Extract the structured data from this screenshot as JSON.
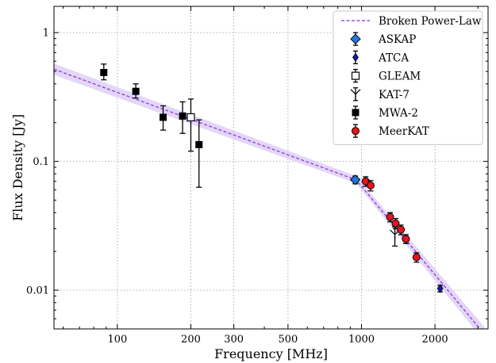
{
  "chart_data": {
    "type": "scatter",
    "xlabel": "Frequency [MHz]",
    "ylabel": "Flux Density [Jy]",
    "xscale": "log",
    "yscale": "log",
    "xlim": [
      55,
      3300
    ],
    "ylim": [
      0.005,
      1.6
    ],
    "x_ticks": [
      100,
      200,
      300,
      500,
      1000,
      2000
    ],
    "x_tick_labels": [
      "100",
      "200",
      "300",
      "500",
      "1000",
      "2000"
    ],
    "y_ticks": [
      0.01,
      0.1,
      1
    ],
    "y_tick_labels": [
      "0.01",
      "0.1",
      "1"
    ],
    "grid": true,
    "legend_position": "top-right",
    "fit": {
      "name": "Broken Power-Law",
      "color": "#8a2be2",
      "band_color": "#d9c8f3",
      "points": [
        [
          55,
          0.52
        ],
        [
          950,
          0.072
        ],
        [
          3300,
          0.0042
        ]
      ],
      "band_points": [
        [
          55,
          0.575,
          0.47
        ],
        [
          950,
          0.077,
          0.0675
        ],
        [
          3300,
          0.0048,
          0.0037
        ]
      ]
    },
    "series": [
      {
        "name": "ASKAP",
        "marker": "diamond",
        "color": "#1f77e8",
        "points": [
          {
            "x": 943,
            "y": 0.072,
            "yerr_lo": 0.005,
            "yerr_hi": 0.005
          }
        ]
      },
      {
        "name": "ATCA",
        "marker": "thin-diamond",
        "color": "#1020a0",
        "points": [
          {
            "x": 2100,
            "y": 0.0103,
            "yerr_lo": 0.0006,
            "yerr_hi": 0.0006
          }
        ]
      },
      {
        "name": "GLEAM",
        "marker": "open-square",
        "color": "#000000",
        "points": [
          {
            "x": 200,
            "y": 0.22,
            "yerr_lo": 0.1,
            "yerr_hi": 0.085
          }
        ]
      },
      {
        "name": "KAT-7",
        "marker": "tri-down",
        "color": "#000000",
        "points": [
          {
            "x": 1370,
            "y": 0.027,
            "yerr_lo": 0.005,
            "yerr_hi": 0.004
          }
        ]
      },
      {
        "name": "MWA-2",
        "marker": "square",
        "color": "#000000",
        "points": [
          {
            "x": 88,
            "y": 0.49,
            "yerr_lo": 0.06,
            "yerr_hi": 0.08
          },
          {
            "x": 119,
            "y": 0.35,
            "yerr_lo": 0.04,
            "yerr_hi": 0.05
          },
          {
            "x": 154,
            "y": 0.22,
            "yerr_lo": 0.045,
            "yerr_hi": 0.05
          },
          {
            "x": 185,
            "y": 0.225,
            "yerr_lo": 0.06,
            "yerr_hi": 0.065
          },
          {
            "x": 216,
            "y": 0.135,
            "yerr_lo": 0.072,
            "yerr_hi": 0.075
          }
        ]
      },
      {
        "name": "MeerKAT",
        "marker": "circle",
        "color": "#e8141b",
        "points": [
          {
            "x": 1040,
            "y": 0.07,
            "yerr_lo": 0.006,
            "yerr_hi": 0.006
          },
          {
            "x": 1090,
            "y": 0.065,
            "yerr_lo": 0.006,
            "yerr_hi": 0.006
          },
          {
            "x": 1310,
            "y": 0.037,
            "yerr_lo": 0.003,
            "yerr_hi": 0.003
          },
          {
            "x": 1380,
            "y": 0.033,
            "yerr_lo": 0.003,
            "yerr_hi": 0.003
          },
          {
            "x": 1450,
            "y": 0.0295,
            "yerr_lo": 0.0025,
            "yerr_hi": 0.0025
          },
          {
            "x": 1520,
            "y": 0.025,
            "yerr_lo": 0.002,
            "yerr_hi": 0.002
          },
          {
            "x": 1680,
            "y": 0.018,
            "yerr_lo": 0.0015,
            "yerr_hi": 0.0015
          }
        ]
      }
    ]
  }
}
